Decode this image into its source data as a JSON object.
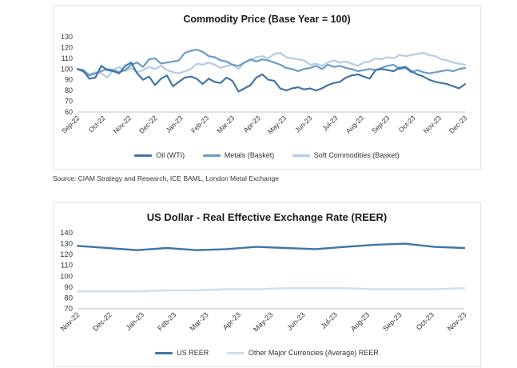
{
  "chart1": {
    "title": "Commodity Price (Base Year = 100)",
    "source": "Source: CIAM Strategy and Research, ICE BAML, London Metal Exchange",
    "chart_data": {
      "type": "line",
      "title": "Commodity Price (Base Year = 100)",
      "ylim": [
        60,
        130
      ],
      "yticks": [
        60,
        70,
        80,
        90,
        100,
        110,
        120,
        130
      ],
      "xticks": [
        "Sep-22",
        "Oct-22",
        "Nov-22",
        "Dec-22",
        "Jan-23",
        "Feb-23",
        "Mar-23",
        "Apr-23",
        "May-23",
        "Jun-23",
        "Jul-23",
        "Aug-23",
        "Sep-23",
        "Oct-23",
        "Nov-23",
        "Dec-23"
      ],
      "grid": false,
      "legend_position": "bottom",
      "series": [
        {
          "name": "Oil (WTI)",
          "color": "#3f75a8",
          "values": [
            100,
            98,
            91,
            92,
            103,
            99,
            98,
            96,
            103,
            106,
            96,
            90,
            93,
            85,
            91,
            94,
            84,
            88,
            92,
            93,
            91,
            86,
            91,
            88,
            87,
            92,
            89,
            79,
            82,
            85,
            92,
            95,
            90,
            89,
            82,
            80,
            82,
            83,
            81,
            82,
            80,
            82,
            85,
            87,
            88,
            92,
            94,
            95,
            93,
            91,
            99,
            100,
            99,
            98,
            101,
            102,
            98,
            95,
            93,
            90,
            88,
            87,
            86,
            84,
            82,
            86
          ]
        },
        {
          "name": "Metals (Basket)",
          "color": "#6b9bc9",
          "values": [
            100,
            99,
            94,
            96,
            98,
            100,
            99,
            97,
            99,
            104,
            106,
            102,
            109,
            110,
            105,
            106,
            107,
            108,
            115,
            117,
            118,
            116,
            112,
            111,
            108,
            107,
            104,
            103,
            106,
            109,
            107,
            109,
            108,
            106,
            104,
            101,
            100,
            98,
            100,
            101,
            103,
            100,
            104,
            102,
            103,
            101,
            100,
            98,
            99,
            100,
            99,
            101,
            103,
            104,
            100,
            101,
            97,
            99,
            97,
            96,
            97,
            98,
            99,
            98,
            100,
            101
          ]
        },
        {
          "name": "Soft Commodities (Basket)",
          "color": "#b3cce3",
          "values": [
            100,
            97,
            95,
            97,
            96,
            92,
            99,
            102,
            98,
            101,
            97,
            99,
            102,
            100,
            103,
            99,
            97,
            96,
            98,
            100,
            105,
            104,
            106,
            104,
            101,
            103,
            104,
            100,
            106,
            108,
            111,
            112,
            110,
            114,
            115,
            111,
            110,
            109,
            108,
            104,
            105,
            103,
            106,
            108,
            106,
            107,
            105,
            103,
            106,
            107,
            110,
            109,
            111,
            110,
            113,
            112,
            113,
            114,
            115,
            113,
            112,
            109,
            108,
            106,
            105,
            104
          ]
        }
      ]
    }
  },
  "chart2": {
    "title": "US Dollar - Real Effective Exchange Rate (REER)",
    "chart_data": {
      "type": "line",
      "title": "US Dollar - Real Effective Exchange Rate (REER)",
      "ylim": [
        70,
        140
      ],
      "yticks": [
        70,
        80,
        90,
        100,
        110,
        120,
        130,
        140
      ],
      "xticks": [
        "Nov-22",
        "Dec-22",
        "Jan-23",
        "Feb-23",
        "Mar-23",
        "Apr-23",
        "May-23",
        "Jun-23",
        "Jul-23",
        "Aug-23",
        "Sep-23",
        "Oct-23",
        "Nov-23"
      ],
      "grid": false,
      "legend_position": "bottom",
      "series": [
        {
          "name": "US REER",
          "color": "#3f75a8",
          "values": [
            128,
            126,
            124,
            126,
            124,
            125,
            127,
            126,
            125,
            127,
            129,
            130,
            127,
            126
          ]
        },
        {
          "name": "Other Major Currencies (Average) REER",
          "color": "#cfdeee",
          "values": [
            86,
            86,
            86,
            87,
            87,
            88,
            88,
            89,
            89,
            89,
            88,
            88,
            88,
            89
          ]
        }
      ]
    }
  }
}
